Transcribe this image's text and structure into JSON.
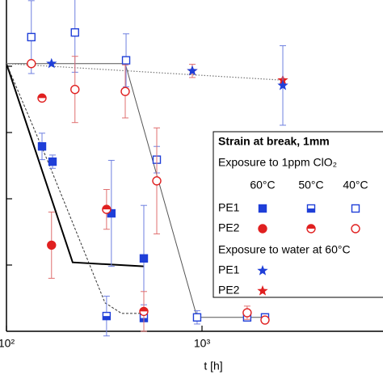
{
  "chart_data": {
    "type": "scatter",
    "x_label": "t [h]",
    "log_x": true,
    "xlim": [
      100,
      8500
    ],
    "xticks": [
      {
        "value": 100,
        "label": "10²"
      },
      {
        "value": 1000,
        "label": "10³"
      }
    ],
    "ylim": [
      0,
      5
    ],
    "yticks": [
      1,
      2,
      3,
      4
    ],
    "legend": {
      "title": "Strain at break, 1mm",
      "subtitle": "Exposure to 1ppm ClO₂",
      "columns": [
        "60°C",
        "50°C",
        "40°C"
      ]
    },
    "series": [
      {
        "name": "PE1",
        "color": "#1f3fd8",
        "error_color": "#6f80e0",
        "shape": "square",
        "conditions": [
          {
            "fill": "full",
            "x": [
              152,
              172,
              344,
              504
            ],
            "values": [
              2.79,
              2.56,
              1.78,
              1.1
            ],
            "errors": [
              0.2,
              0.1,
              0.8,
              0.8
            ]
          },
          {
            "fill": "half",
            "x": [
              325,
              504
            ],
            "values": [
              0.23,
              0.2
            ],
            "errors": [
              0.3,
              0.2
            ]
          },
          {
            "fill": "open",
            "x": [
              134,
              224,
              409,
              587,
              944,
              1702,
              2100
            ],
            "values": [
              4.44,
              4.51,
              4.09,
              2.59,
              0.21,
              0.21,
              0.21
            ],
            "errors": [
              0.55,
              0.6,
              0.4,
              0.2,
              0.1,
              null,
              null
            ]
          }
        ]
      },
      {
        "name": "PE2",
        "color": "#e02020",
        "error_color": "#e07070",
        "shape": "circle",
        "conditions": [
          {
            "fill": "full",
            "x": [
              170
            ],
            "values": [
              1.3
            ],
            "errors": [
              0.5
            ]
          },
          {
            "fill": "half",
            "x": [
              152,
              325,
              504
            ],
            "values": [
              3.52,
              1.84,
              0.3
            ],
            "errors": [
              null,
              0.3,
              0.3
            ]
          },
          {
            "fill": "open",
            "x": [
              134,
              224,
              405,
              587,
              1702,
              2100
            ],
            "values": [
              4.04,
              3.65,
              3.62,
              2.27,
              0.28,
              0.17
            ],
            "errors": [
              null,
              0.5,
              0.4,
              0.8,
              0.1,
              null
            ]
          }
        ]
      }
    ],
    "water": {
      "name": "Exposure to water at 60°C",
      "series": [
        {
          "name": "PE1",
          "color": "#1f3fd8",
          "error_color": "#6f80e0",
          "x": [
            170,
            892,
            2590
          ],
          "values": [
            4.04,
            3.93,
            3.71
          ],
          "errors": [
            null,
            null,
            0.6
          ]
        },
        {
          "name": "PE2",
          "color": "#e02020",
          "error_color": "#e07070",
          "x": [
            892,
            2590
          ],
          "values": [
            3.93,
            3.79
          ],
          "errors": [
            0.1,
            null
          ]
        }
      ]
    },
    "fit_lines": [
      {
        "style": "thick",
        "color": "#000000",
        "x": [
          100,
          218,
          504
        ],
        "values": [
          4.04,
          1.04,
          0.98
        ]
      },
      {
        "style": "dashed",
        "color": "#333333",
        "x": [
          100,
          163,
          319,
          388,
          504
        ],
        "values": [
          4.04,
          2.56,
          0.43,
          0.27,
          0.27
        ]
      },
      {
        "style": "thin",
        "color": "#555555",
        "x": [
          100,
          405,
          944,
          2100
        ],
        "values": [
          4.04,
          4.04,
          0.21,
          0.21
        ]
      },
      {
        "style": "dotted",
        "color": "#777777",
        "x": [
          100,
          2590
        ],
        "values": [
          4.04,
          3.79
        ]
      }
    ]
  }
}
